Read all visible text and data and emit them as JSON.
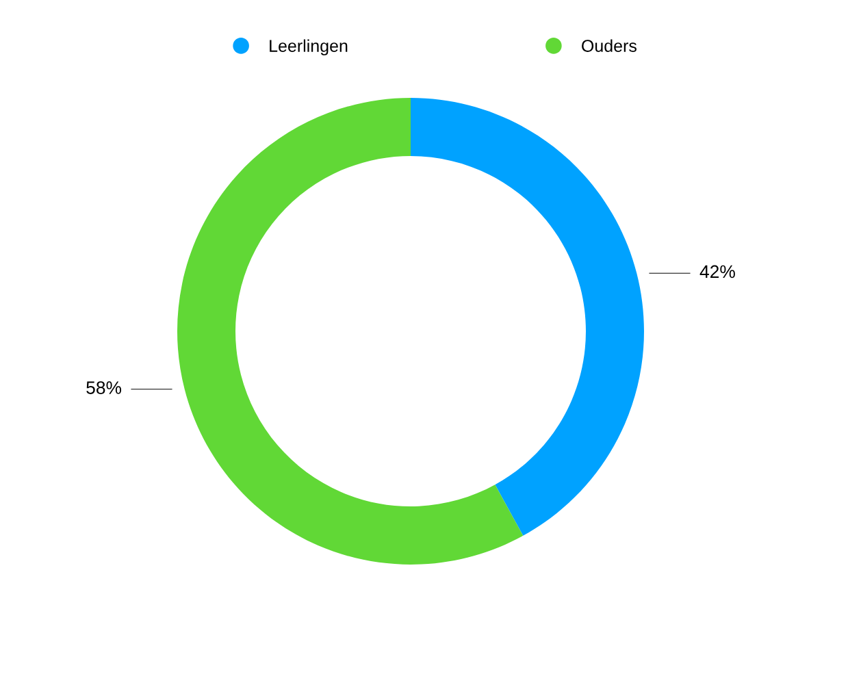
{
  "chart_data": {
    "type": "donut",
    "categories": [
      "Leerlingen",
      "Ouders"
    ],
    "values": [
      42,
      58
    ],
    "colors": [
      "#00a2ff",
      "#61d836"
    ],
    "value_labels": [
      "42%",
      "58%"
    ],
    "legend": "top"
  }
}
